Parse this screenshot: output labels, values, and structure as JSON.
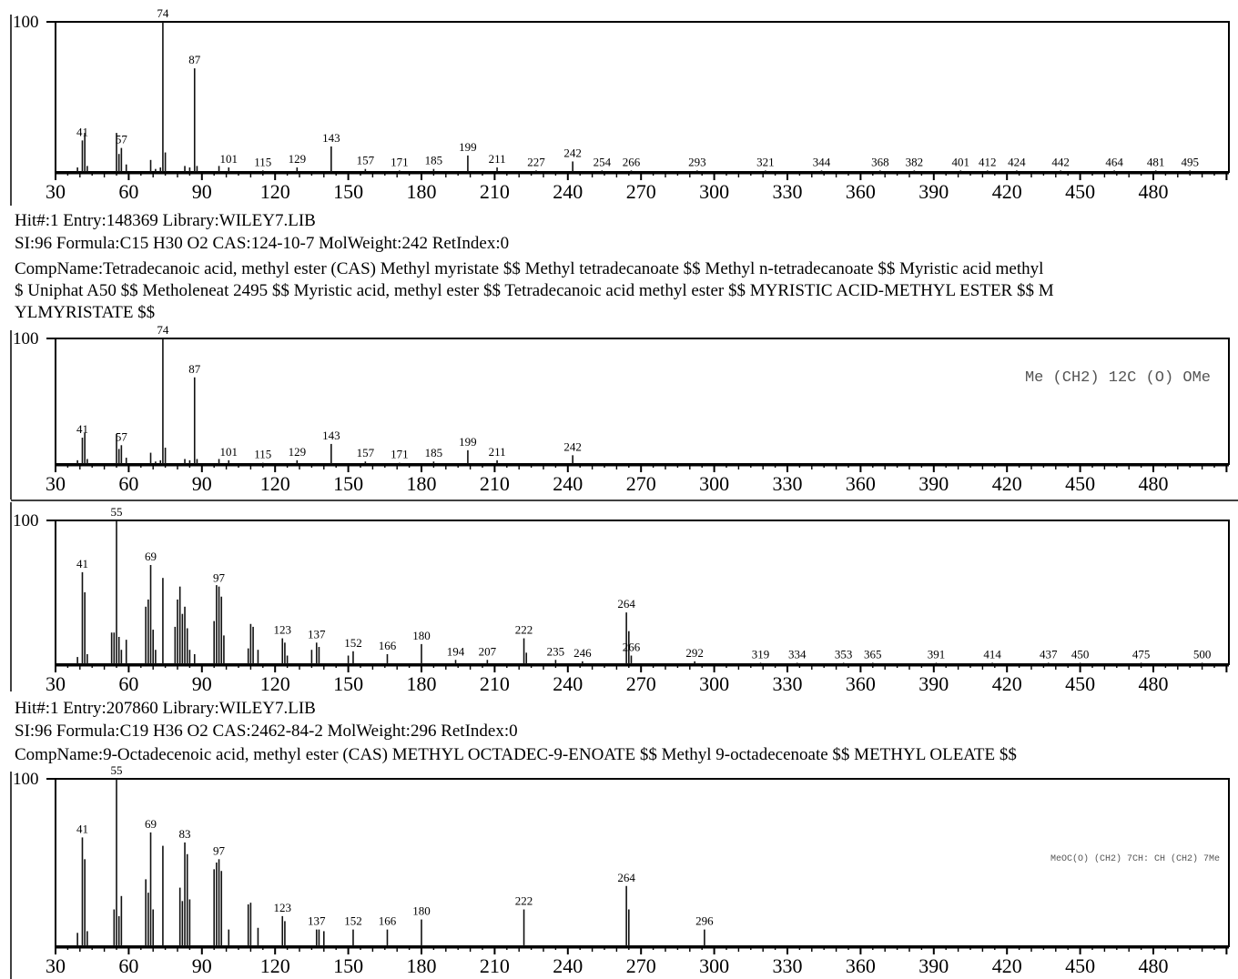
{
  "chart_data": [
    {
      "type": "bar",
      "title": "",
      "xlabel": "",
      "ylabel": "",
      "xlim": [
        0,
        500
      ],
      "ylim": [
        0,
        100
      ],
      "y_axis_label": "100",
      "x_ticks": [
        30,
        60,
        90,
        120,
        150,
        180,
        210,
        240,
        270,
        300,
        330,
        360,
        390,
        420,
        450,
        480
      ],
      "structure_text": "",
      "series": [
        {
          "x": [
            39,
            41,
            42,
            43,
            55,
            56,
            57,
            59,
            69,
            71,
            73,
            74,
            75,
            83,
            85,
            87,
            88,
            97,
            101,
            115,
            129,
            143,
            157,
            171,
            185,
            199,
            211,
            227,
            242,
            254,
            266,
            293,
            321,
            344,
            368,
            382,
            401,
            412,
            424,
            442,
            464,
            481,
            495
          ],
          "values": [
            3,
            21,
            26,
            4,
            26,
            12,
            16,
            5,
            8,
            2,
            3,
            100,
            13,
            4,
            3,
            69,
            4,
            4,
            3,
            1,
            3,
            17,
            2,
            1,
            2,
            11,
            3,
            1,
            7,
            1,
            1,
            1,
            1,
            1,
            1,
            1,
            1,
            1,
            1,
            1,
            1,
            1,
            1
          ]
        }
      ],
      "peak_labels": [
        {
          "x": 41,
          "y": 21,
          "text": "41"
        },
        {
          "x": 57,
          "y": 16,
          "text": "57"
        },
        {
          "x": 74,
          "y": 100,
          "text": "74"
        },
        {
          "x": 87,
          "y": 69,
          "text": "87"
        },
        {
          "x": 101,
          "y": 3,
          "text": "101"
        },
        {
          "x": 115,
          "y": 1,
          "text": "115"
        },
        {
          "x": 129,
          "y": 3,
          "text": "129"
        },
        {
          "x": 143,
          "y": 17,
          "text": "143"
        },
        {
          "x": 157,
          "y": 2,
          "text": "157"
        },
        {
          "x": 171,
          "y": 1,
          "text": "171"
        },
        {
          "x": 185,
          "y": 2,
          "text": "185"
        },
        {
          "x": 199,
          "y": 11,
          "text": "199"
        },
        {
          "x": 211,
          "y": 3,
          "text": "211"
        },
        {
          "x": 227,
          "y": 1,
          "text": "227"
        },
        {
          "x": 242,
          "y": 7,
          "text": "242"
        },
        {
          "x": 254,
          "y": 1,
          "text": "254"
        },
        {
          "x": 266,
          "y": 1,
          "text": "266"
        },
        {
          "x": 293,
          "y": 1,
          "text": "293"
        },
        {
          "x": 321,
          "y": 1,
          "text": "321"
        },
        {
          "x": 344,
          "y": 1,
          "text": "344"
        },
        {
          "x": 368,
          "y": 1,
          "text": "368"
        },
        {
          "x": 382,
          "y": 1,
          "text": "382"
        },
        {
          "x": 401,
          "y": 1,
          "text": "401"
        },
        {
          "x": 412,
          "y": 1,
          "text": "412"
        },
        {
          "x": 424,
          "y": 1,
          "text": "424"
        },
        {
          "x": 442,
          "y": 1,
          "text": "442"
        },
        {
          "x": 464,
          "y": 1,
          "text": "464"
        },
        {
          "x": 481,
          "y": 1,
          "text": "481"
        },
        {
          "x": 495,
          "y": 1,
          "text": "495"
        }
      ]
    },
    {
      "type": "bar",
      "title": "",
      "xlabel": "",
      "ylabel": "",
      "xlim": [
        0,
        500
      ],
      "ylim": [
        0,
        100
      ],
      "y_axis_label": "100",
      "x_ticks": [
        30,
        60,
        90,
        120,
        150,
        180,
        210,
        240,
        270,
        300,
        330,
        360,
        390,
        420,
        450,
        480
      ],
      "structure_text": "Me (CH2) 12C (O) OMe",
      "series": [
        {
          "x": [
            39,
            41,
            42,
            43,
            55,
            56,
            57,
            59,
            69,
            71,
            73,
            74,
            75,
            83,
            85,
            87,
            88,
            97,
            101,
            115,
            129,
            143,
            157,
            171,
            185,
            199,
            211,
            242
          ],
          "values": [
            3,
            21,
            25,
            4,
            24,
            12,
            15,
            5,
            9,
            2,
            3,
            100,
            13,
            4,
            3,
            69,
            4,
            4,
            3,
            1,
            3,
            16,
            2,
            1,
            2,
            11,
            3,
            7
          ]
        }
      ],
      "peak_labels": [
        {
          "x": 41,
          "y": 21,
          "text": "41"
        },
        {
          "x": 57,
          "y": 15,
          "text": "57"
        },
        {
          "x": 74,
          "y": 100,
          "text": "74"
        },
        {
          "x": 87,
          "y": 69,
          "text": "87"
        },
        {
          "x": 101,
          "y": 3,
          "text": "101"
        },
        {
          "x": 115,
          "y": 1,
          "text": "115"
        },
        {
          "x": 129,
          "y": 3,
          "text": "129"
        },
        {
          "x": 143,
          "y": 16,
          "text": "143"
        },
        {
          "x": 157,
          "y": 2,
          "text": "157"
        },
        {
          "x": 171,
          "y": 1,
          "text": "171"
        },
        {
          "x": 185,
          "y": 2,
          "text": "185"
        },
        {
          "x": 199,
          "y": 11,
          "text": "199"
        },
        {
          "x": 211,
          "y": 3,
          "text": "211"
        },
        {
          "x": 242,
          "y": 7,
          "text": "242"
        }
      ]
    },
    {
      "type": "bar",
      "title": "",
      "xlabel": "",
      "ylabel": "",
      "xlim": [
        0,
        500
      ],
      "ylim": [
        0,
        100
      ],
      "y_axis_label": "100",
      "x_ticks": [
        30,
        60,
        90,
        120,
        150,
        180,
        210,
        240,
        270,
        300,
        330,
        360,
        390,
        420,
        450,
        480
      ],
      "structure_text": "",
      "series": [
        {
          "x": [
            39,
            41,
            42,
            43,
            53,
            54,
            55,
            56,
            57,
            59,
            67,
            68,
            69,
            70,
            71,
            74,
            79,
            80,
            81,
            82,
            83,
            84,
            85,
            87,
            95,
            96,
            97,
            98,
            99,
            109,
            110,
            111,
            113,
            123,
            124,
            125,
            135,
            137,
            138,
            150,
            152,
            166,
            180,
            194,
            207,
            222,
            223,
            235,
            246,
            264,
            265,
            266,
            292,
            319,
            334,
            353,
            365,
            391,
            414,
            437,
            450,
            475,
            500
          ],
          "values": [
            5,
            64,
            50,
            7,
            22,
            22,
            100,
            19,
            10,
            17,
            40,
            45,
            69,
            24,
            10,
            60,
            26,
            45,
            54,
            35,
            40,
            25,
            10,
            7,
            30,
            55,
            54,
            47,
            20,
            11,
            28,
            26,
            10,
            18,
            15,
            6,
            10,
            15,
            12,
            6,
            9,
            7,
            14,
            3,
            3,
            18,
            8,
            3,
            2,
            36,
            23,
            6,
            2,
            1,
            1,
            1,
            1,
            1,
            1,
            1,
            1,
            1,
            1
          ]
        }
      ],
      "peak_labels": [
        {
          "x": 41,
          "y": 64,
          "text": "41"
        },
        {
          "x": 55,
          "y": 100,
          "text": "55"
        },
        {
          "x": 69,
          "y": 69,
          "text": "69"
        },
        {
          "x": 97,
          "y": 54,
          "text": "97"
        },
        {
          "x": 123,
          "y": 18,
          "text": "123"
        },
        {
          "x": 137,
          "y": 15,
          "text": "137"
        },
        {
          "x": 152,
          "y": 9,
          "text": "152"
        },
        {
          "x": 166,
          "y": 7,
          "text": "166"
        },
        {
          "x": 180,
          "y": 14,
          "text": "180"
        },
        {
          "x": 194,
          "y": 3,
          "text": "194"
        },
        {
          "x": 207,
          "y": 3,
          "text": "207"
        },
        {
          "x": 222,
          "y": 18,
          "text": "222"
        },
        {
          "x": 235,
          "y": 3,
          "text": "235"
        },
        {
          "x": 246,
          "y": 2,
          "text": "246"
        },
        {
          "x": 264,
          "y": 36,
          "text": "264"
        },
        {
          "x": 266,
          "y": 6,
          "text": "266"
        },
        {
          "x": 292,
          "y": 2,
          "text": "292"
        },
        {
          "x": 319,
          "y": 1,
          "text": "319"
        },
        {
          "x": 334,
          "y": 1,
          "text": "334"
        },
        {
          "x": 353,
          "y": 1,
          "text": "353"
        },
        {
          "x": 365,
          "y": 1,
          "text": "365"
        },
        {
          "x": 391,
          "y": 1,
          "text": "391"
        },
        {
          "x": 414,
          "y": 1,
          "text": "414"
        },
        {
          "x": 437,
          "y": 1,
          "text": "437"
        },
        {
          "x": 450,
          "y": 1,
          "text": "450"
        },
        {
          "x": 475,
          "y": 1,
          "text": "475"
        },
        {
          "x": 500,
          "y": 1,
          "text": "500"
        }
      ]
    },
    {
      "type": "bar",
      "title": "",
      "xlabel": "",
      "ylabel": "",
      "xlim": [
        0,
        500
      ],
      "ylim": [
        0,
        100
      ],
      "y_axis_label": "100",
      "x_ticks": [
        30,
        60,
        90,
        120,
        150,
        180,
        210,
        240,
        270,
        300,
        330,
        360,
        390,
        420,
        450,
        480
      ],
      "structure_text": "MeOC(O) (CH2) 7CH: CH (CH2) 7Me",
      "series": [
        {
          "x": [
            39,
            41,
            42,
            43,
            54,
            55,
            56,
            57,
            67,
            68,
            69,
            70,
            74,
            81,
            82,
            83,
            84,
            85,
            95,
            96,
            97,
            98,
            101,
            109,
            110,
            113,
            123,
            124,
            137,
            138,
            140,
            152,
            166,
            180,
            222,
            264,
            265,
            296
          ],
          "values": [
            8,
            65,
            52,
            9,
            22,
            100,
            18,
            30,
            40,
            32,
            68,
            22,
            60,
            35,
            27,
            62,
            55,
            28,
            46,
            50,
            52,
            45,
            10,
            25,
            26,
            11,
            18,
            15,
            10,
            10,
            9,
            10,
            10,
            16,
            22,
            36,
            22,
            10
          ]
        }
      ],
      "peak_labels": [
        {
          "x": 41,
          "y": 65,
          "text": "41"
        },
        {
          "x": 55,
          "y": 100,
          "text": "55"
        },
        {
          "x": 69,
          "y": 68,
          "text": "69"
        },
        {
          "x": 83,
          "y": 62,
          "text": "83"
        },
        {
          "x": 97,
          "y": 52,
          "text": "97"
        },
        {
          "x": 123,
          "y": 18,
          "text": "123"
        },
        {
          "x": 137,
          "y": 10,
          "text": "137"
        },
        {
          "x": 152,
          "y": 10,
          "text": "152"
        },
        {
          "x": 166,
          "y": 10,
          "text": "166"
        },
        {
          "x": 180,
          "y": 16,
          "text": "180"
        },
        {
          "x": 222,
          "y": 22,
          "text": "222"
        },
        {
          "x": 264,
          "y": 36,
          "text": "264"
        },
        {
          "x": 296,
          "y": 10,
          "text": "296"
        }
      ]
    }
  ],
  "hit1": {
    "line1": "Hit#:1  Entry:148369  Library:WILEY7.LIB",
    "line2": "SI:96  Formula:C15 H30 O2  CAS:124-10-7  MolWeight:242  RetIndex:0",
    "line3": "CompName:Tetradecanoic acid, methyl ester (CAS) Methyl myristate $$ Methyl tetradecanoate $$ Methyl n-tetradecanoate $$ Myristic acid methyl",
    "line4": "$ Uniphat A50 $$ Metholeneat 2495 $$ Myristic acid, methyl ester $$ Tetradecanoic acid methyl ester $$ MYRISTIC ACID-METHYL ESTER $$ M",
    "line5": "YLMYRISTATE $$"
  },
  "hit2": {
    "line1": "Hit#:1  Entry:207860  Library:WILEY7.LIB",
    "line2": "SI:96  Formula:C19 H36 O2  CAS:2462-84-2  MolWeight:296  RetIndex:0",
    "line3": "CompName:9-Octadecenoic acid, methyl ester (CAS) METHYL OCTADEC-9-ENOATE $$ Methyl 9-octadecenoate $$ METHYL OLEATE $$"
  }
}
